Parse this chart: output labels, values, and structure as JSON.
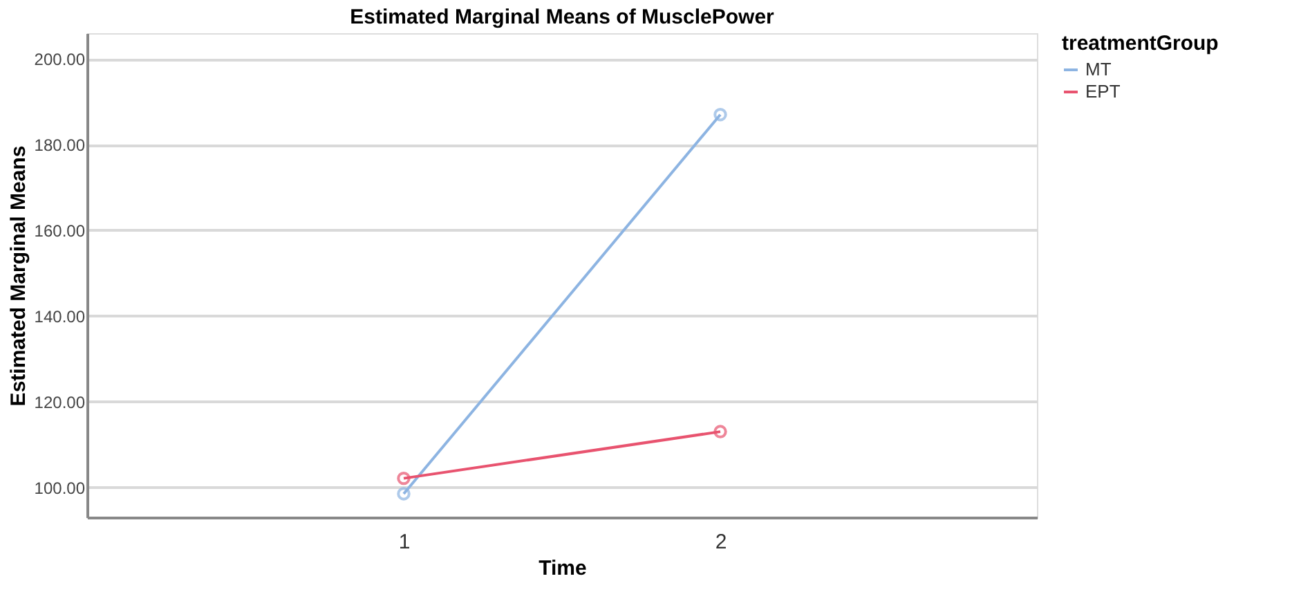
{
  "chart_data": {
    "type": "line",
    "title": "Estimated Marginal Means of MusclePower",
    "xlabel": "Time",
    "ylabel": "Estimated Marginal Means",
    "legend_title": "treatmentGroup",
    "categories": [
      "1",
      "2"
    ],
    "series": [
      {
        "name": "MT",
        "color": "#8db4e2",
        "values": [
          98.5,
          187.0
        ]
      },
      {
        "name": "EPT",
        "color": "#e8536f",
        "values": [
          102.1,
          113.0
        ]
      }
    ],
    "ylim": [
      93,
      206
    ],
    "yticks": [
      {
        "value": 100,
        "label": "100.00"
      },
      {
        "value": 120,
        "label": "120.00"
      },
      {
        "value": 140,
        "label": "140.00"
      },
      {
        "value": 160,
        "label": "160.00"
      },
      {
        "value": 180,
        "label": "180.00"
      },
      {
        "value": 200,
        "label": "200.00"
      }
    ],
    "grid": "y",
    "legend": "top right",
    "marker": "circle",
    "line_style": "solid"
  }
}
